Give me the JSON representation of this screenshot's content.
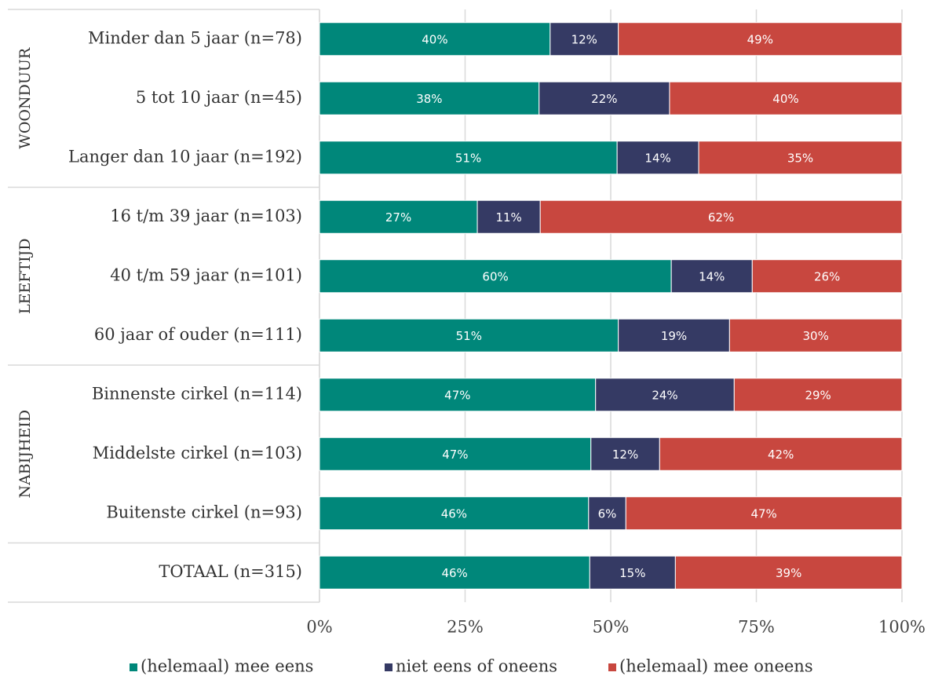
{
  "chart_data": {
    "type": "stacked-barh",
    "categories": [
      "Minder dan 5 jaar (n=78)",
      "5 tot 10 jaar (n=45)",
      "Langer dan 10 jaar (n=192)",
      "16 t/m 39 jaar (n=103)",
      "40 t/m 59 jaar (n=101)",
      "60 jaar of ouder (n=111)",
      "Binnenste cirkel (n=114)",
      "Middelste cirkel (n=103)",
      "Buitenste cirkel (n=93)",
      "TOTAAL (n=315)"
    ],
    "groups": [
      {
        "label": "WOONDUUR",
        "size": 3
      },
      {
        "label": "LEEFTIJD",
        "size": 3
      },
      {
        "label": "NABIJHEID",
        "size": 3
      }
    ],
    "series": [
      {
        "name": "(helemaal) mee eens",
        "color": "#00877a",
        "values": [
          39.6,
          37.7,
          51.1,
          27.1,
          60.4,
          51.3,
          47.4,
          46.6,
          46.2,
          46.4
        ],
        "value_labels": [
          "40%",
          "38%",
          "51%",
          "27%",
          "60%",
          "51%",
          "47%",
          "47%",
          "46%",
          "46%"
        ]
      },
      {
        "name": "niet eens of oneens",
        "color": "#353a64",
        "values": [
          11.7,
          22.4,
          14.0,
          10.8,
          13.9,
          19.1,
          23.8,
          11.8,
          6.4,
          14.7
        ],
        "value_labels": [
          "12%",
          "22%",
          "14%",
          "11%",
          "14%",
          "19%",
          "24%",
          "12%",
          "6%",
          "15%"
        ]
      },
      {
        "name": "(helemaal) mee oneens",
        "color": "#c8473f",
        "values": [
          48.7,
          39.9,
          34.9,
          62.1,
          25.7,
          29.6,
          28.8,
          41.6,
          47.4,
          38.9
        ],
        "value_labels": [
          "49%",
          "40%",
          "35%",
          "62%",
          "26%",
          "30%",
          "29%",
          "42%",
          "47%",
          "39%"
        ]
      }
    ],
    "xlim": [
      0,
      100
    ],
    "xticks": [
      {
        "value": 0,
        "label": "0%"
      },
      {
        "value": 25,
        "label": "25%"
      },
      {
        "value": 50,
        "label": "50%"
      },
      {
        "value": 75,
        "label": "75%"
      },
      {
        "value": 100,
        "label": "100%"
      }
    ],
    "grid": true,
    "legend": "bottom"
  }
}
